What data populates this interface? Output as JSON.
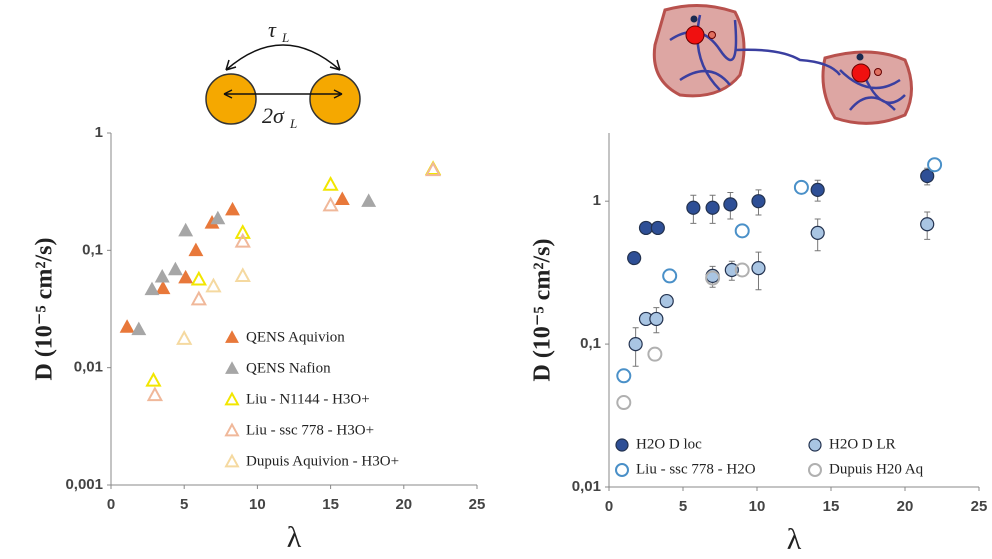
{
  "illustration": {
    "tau": "τ",
    "tau_sub": "L",
    "sigma": "2σ",
    "sigma_sub": "L"
  },
  "chart_data": [
    {
      "type": "scatter",
      "xlabel": "λ",
      "ylabel": "D (10⁻⁵ cm²/s)",
      "yscale": "log",
      "xlim": [
        0,
        25
      ],
      "ylim": [
        0.001,
        1
      ],
      "xticks": [
        0,
        5,
        10,
        15,
        20,
        25
      ],
      "yticks": [
        {
          "value": 0.001,
          "label": "0,001"
        },
        {
          "value": 0.01,
          "label": "0,01"
        },
        {
          "value": 0.1,
          "label": "0,1"
        },
        1
      ],
      "series": [
        {
          "name": "QENS Aquivion",
          "marker": "triangle",
          "filled": true,
          "color": "#e8783a",
          "x": [
            1.1,
            3.55,
            5.1,
            5.8,
            6.9,
            8.3,
            15.8
          ],
          "values": [
            0.022,
            0.047,
            0.058,
            0.099,
            0.17,
            0.22,
            0.27
          ]
        },
        {
          "name": "QENS Nafion",
          "marker": "triangle",
          "filled": true,
          "color": "#a6a6a6",
          "x": [
            1.9,
            2.8,
            3.5,
            4.4,
            5.1,
            7.3,
            17.6
          ],
          "values": [
            0.021,
            0.046,
            0.059,
            0.068,
            0.146,
            0.185,
            0.26
          ]
        },
        {
          "name": "Liu - N1144 - H3O+",
          "marker": "triangle",
          "filled": false,
          "color": "#f2e600",
          "x": [
            2.9,
            6,
            9,
            15,
            22
          ],
          "values": [
            0.0077,
            0.056,
            0.14,
            0.36,
            0.49
          ]
        },
        {
          "name": "Liu - ssc 778 - H3O+",
          "marker": "triangle",
          "filled": false,
          "color": "#f0b89a",
          "x": [
            3,
            6,
            9,
            15,
            22
          ],
          "values": [
            0.0058,
            0.038,
            0.118,
            0.24,
            0.48
          ]
        },
        {
          "name": "Dupuis Aquivion - H3O+",
          "marker": "triangle",
          "filled": false,
          "color": "#f5d9a0",
          "x": [
            5,
            7,
            9
          ],
          "values": [
            0.0175,
            0.049,
            0.06
          ]
        }
      ]
    },
    {
      "type": "scatter",
      "xlabel": "λ",
      "ylabel": "D (10⁻⁵ cm²/s)",
      "yscale": "log",
      "xlim": [
        0,
        25
      ],
      "ylim": [
        0.01,
        3
      ],
      "xticks": [
        0,
        5,
        10,
        15,
        20,
        25
      ],
      "yticks": [
        {
          "value": 0.01,
          "label": "0,01"
        },
        {
          "value": 0.1,
          "label": "0,1"
        },
        1
      ],
      "series": [
        {
          "name": "H2O D loc",
          "marker": "circle",
          "filled": true,
          "color": "#2e4f96",
          "x": [
            1.7,
            2.5,
            3.3,
            5.7,
            7.0,
            8.2,
            10.1,
            14.1,
            21.5
          ],
          "values": [
            0.4,
            0.65,
            0.65,
            0.9,
            0.9,
            0.95,
            1.0,
            1.2,
            1.5
          ],
          "errors": [
            0,
            0,
            0,
            0.2,
            0.2,
            0.2,
            0.2,
            0.2,
            0.2
          ]
        },
        {
          "name": "H2O D LR",
          "marker": "circle",
          "filled": true,
          "color": "#a9c5e3",
          "x": [
            1.8,
            2.5,
            3.2,
            3.9,
            7.0,
            8.3,
            10.1,
            14.1,
            21.5
          ],
          "values": [
            0.1,
            0.15,
            0.15,
            0.2,
            0.3,
            0.33,
            0.34,
            0.6,
            0.69
          ],
          "errors": [
            0.03,
            0,
            0.03,
            0,
            0.05,
            0.05,
            0.1,
            0.15,
            0.15
          ]
        },
        {
          "name": "Liu - ssc 778 - H2O",
          "marker": "circle",
          "filled": false,
          "color": "#4a90c8",
          "x": [
            1.0,
            4.1,
            9.0,
            13.0,
            22.0
          ],
          "values": [
            0.06,
            0.3,
            0.62,
            1.25,
            1.8
          ]
        },
        {
          "name": "Dupuis H20 Aq",
          "marker": "circle",
          "filled": false,
          "color": "#b0b0b0",
          "x": [
            1.0,
            3.1,
            7.0,
            9.0
          ],
          "values": [
            0.039,
            0.085,
            0.29,
            0.33
          ]
        }
      ]
    }
  ]
}
